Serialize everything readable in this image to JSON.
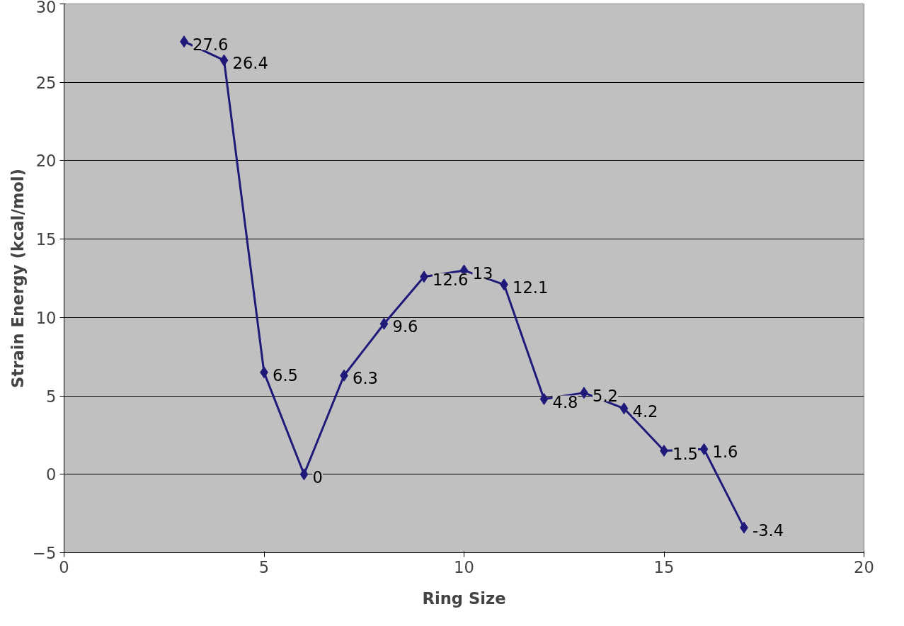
{
  "chart_data": {
    "type": "line",
    "xlabel": "Ring Size",
    "ylabel": "Strain Energy (kcal/mol)",
    "x": [
      3,
      4,
      5,
      6,
      7,
      8,
      9,
      10,
      11,
      12,
      13,
      14,
      15,
      16,
      17
    ],
    "series": [
      {
        "color": "#1f1a7a",
        "values": [
          27.6,
          26.4,
          6.5,
          0,
          6.3,
          9.6,
          12.6,
          13,
          12.1,
          4.8,
          5.2,
          4.2,
          1.5,
          1.6,
          -3.4
        ]
      }
    ],
    "xlim": [
      0,
      20
    ],
    "xticks": [
      0,
      5,
      10,
      15,
      20
    ],
    "ylim": [
      -5,
      30
    ],
    "yticks": [
      -5,
      0,
      5,
      10,
      15,
      20,
      25,
      30
    ],
    "grid": "y",
    "marker": "diamond",
    "line_style": "solid",
    "data_labels": true
  }
}
